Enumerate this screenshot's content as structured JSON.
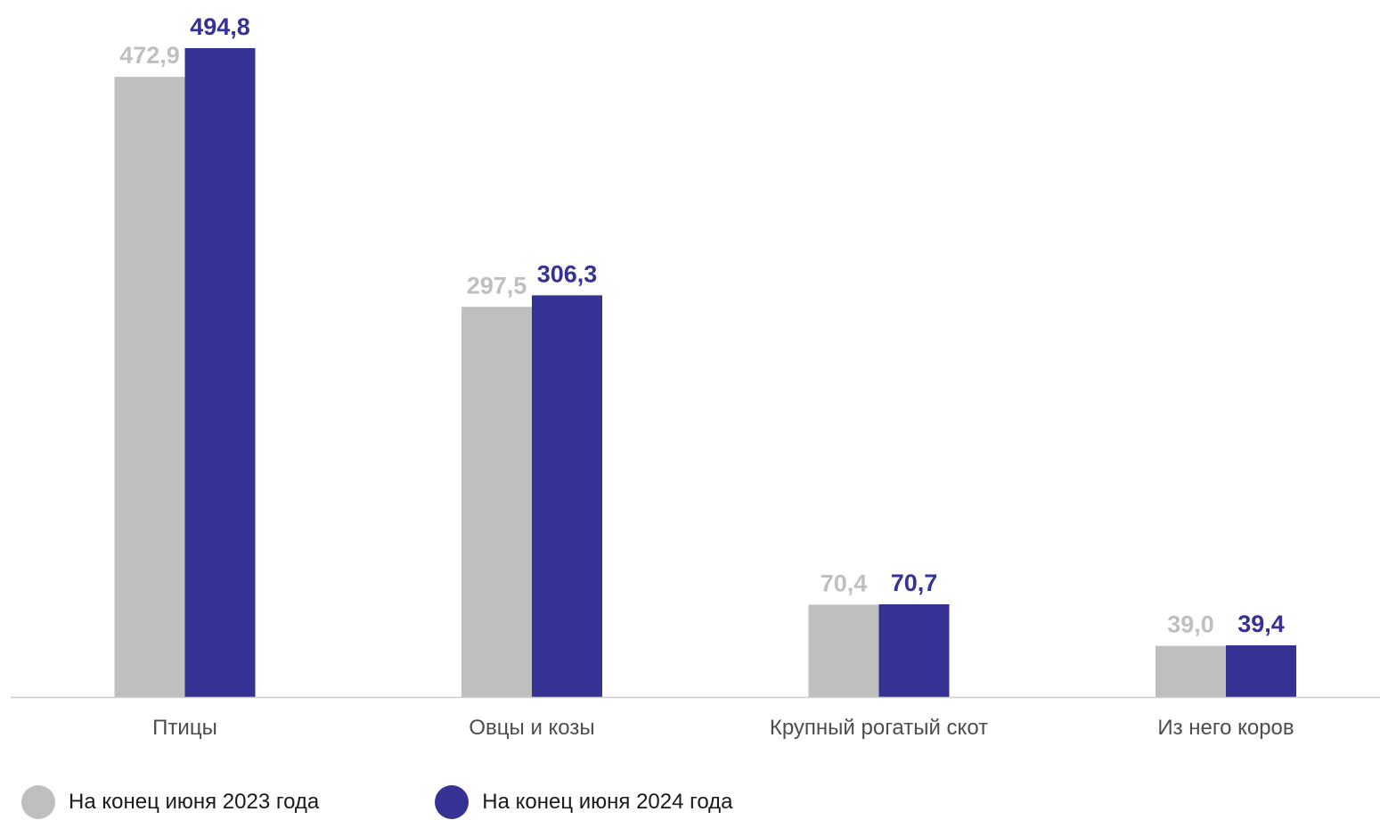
{
  "chart_data": {
    "type": "bar",
    "categories": [
      "Птицы",
      "Овцы и козы",
      "Крупный рогатый скот",
      "Из него коров"
    ],
    "series": [
      {
        "name": "На конец июня 2023 года",
        "values": [
          472.9,
          297.5,
          70.4,
          39.0
        ],
        "labels": [
          "472,9",
          "297,5",
          "70,4",
          "39,0"
        ],
        "color": "#bfbfbf",
        "label_color": "#bfbfbf"
      },
      {
        "name": "На конец июня 2024 года",
        "values": [
          494.8,
          306.3,
          70.7,
          39.4
        ],
        "labels": [
          "494,8",
          "306,3",
          "70,7",
          "39,4"
        ],
        "color": "#363294",
        "label_color": "#363294"
      }
    ],
    "ylim": [
      0,
      494.8
    ],
    "grid": false,
    "legend_position": "bottom-left",
    "title": "",
    "xlabel": "",
    "ylabel": ""
  },
  "colors": {
    "axis_line": "#cccccc",
    "category_text": "#4d4d4d",
    "legend_text": "#1a1a1a"
  }
}
